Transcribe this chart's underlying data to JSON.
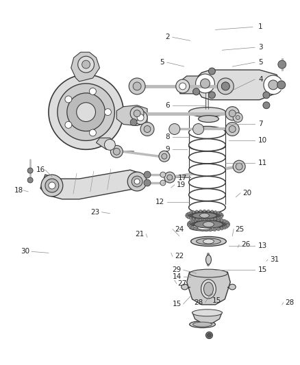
{
  "bg_color": "#ffffff",
  "line_color": "#3a3a3a",
  "gray_dark": "#555555",
  "gray_mid": "#888888",
  "gray_light": "#bbbbbb",
  "gray_fill": "#cccccc",
  "gray_lighter": "#dddddd",
  "figsize": [
    4.38,
    5.33
  ],
  "dpi": 100,
  "label_fontsize": 7.5,
  "label_color": "#222222"
}
